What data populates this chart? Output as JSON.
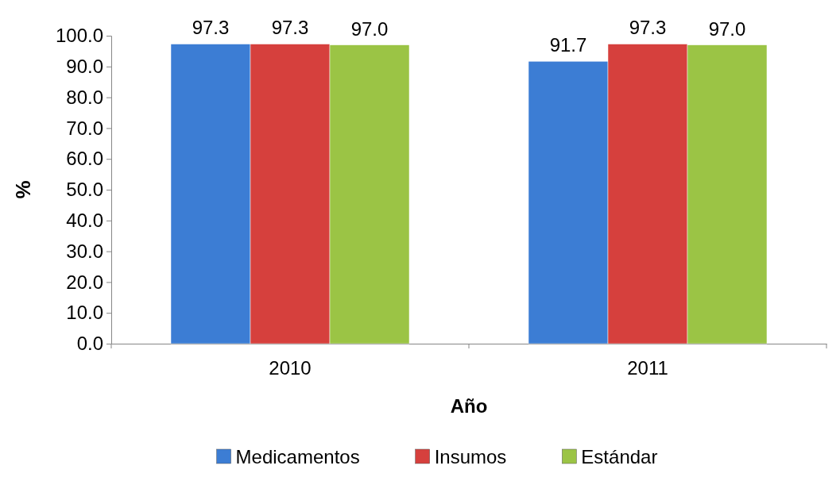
{
  "chart_data": {
    "type": "bar",
    "xlabel": "Año",
    "ylabel": "%",
    "categories": [
      "2010",
      "2011"
    ],
    "series": [
      {
        "name": "Medicamentos",
        "color": "#3c7dd4",
        "values": [
          97.3,
          91.7
        ],
        "value_labels": [
          "97.3",
          "91.7"
        ]
      },
      {
        "name": "Insumos",
        "color": "#d6403d",
        "values": [
          97.3,
          97.3
        ],
        "value_labels": [
          "97.3",
          "97.3"
        ]
      },
      {
        "name": "Estándar",
        "color": "#9bc445",
        "values": [
          97.0,
          97.0
        ],
        "value_labels": [
          "97.0",
          "97.0"
        ]
      }
    ],
    "ylim": [
      0,
      100
    ],
    "yticks": [
      {
        "value": 0,
        "label": "0.0"
      },
      {
        "value": 10,
        "label": "10.0"
      },
      {
        "value": 20,
        "label": "20.0"
      },
      {
        "value": 30,
        "label": "30.0"
      },
      {
        "value": 40,
        "label": "40.0"
      },
      {
        "value": 50,
        "label": "50.0"
      },
      {
        "value": 60,
        "label": "60.0"
      },
      {
        "value": 70,
        "label": "70.0"
      },
      {
        "value": 80,
        "label": "80.0"
      },
      {
        "value": 90,
        "label": "90.0"
      },
      {
        "value": 100,
        "label": "100.0"
      }
    ],
    "grid": false,
    "legend": "bottom"
  }
}
